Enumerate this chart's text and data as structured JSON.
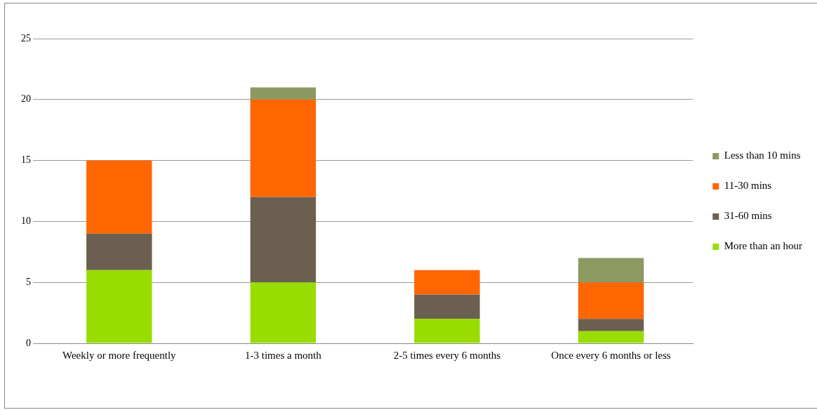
{
  "chart_data": {
    "type": "bar",
    "stacked": true,
    "categories": [
      "Weekly or more frequently",
      "1-3 times a month",
      "2-5 times every 6 months",
      "Once every 6 months or less"
    ],
    "series": [
      {
        "name": "More than an hour",
        "color": "#99dd00",
        "values": [
          6,
          5,
          2,
          1
        ]
      },
      {
        "name": "31-60 mins",
        "color": "#6b5f50",
        "values": [
          3,
          7,
          2,
          1
        ]
      },
      {
        "name": "11-30 mins",
        "color": "#ff6600",
        "values": [
          6,
          8,
          2,
          3
        ]
      },
      {
        "name": "Less than 10 mins",
        "color": "#8c9a62",
        "values": [
          0,
          1,
          0,
          2
        ]
      }
    ],
    "ylim": [
      0,
      25
    ],
    "yticks": [
      0,
      5,
      10,
      15,
      20,
      25
    ],
    "grid": "y",
    "legend": "right"
  }
}
